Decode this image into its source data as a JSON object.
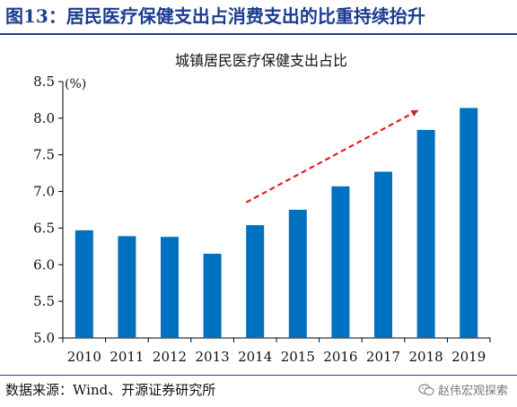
{
  "header": {
    "figure_title": "图13：居民医疗保健支出占消费支出的比重持续抬升"
  },
  "footer": {
    "source": "数据来源：Wind、开源证券研究所",
    "watermark": "赵伟宏观探索"
  },
  "icons": {
    "watermark_icon": "wechat-logo-icon"
  },
  "colors": {
    "bar": "#0070c0",
    "arrow": "#e02020",
    "title": "#1b3d8f"
  },
  "chart_data": {
    "type": "bar",
    "title": "城镇居民医疗保健支出占比",
    "ylabel": "(%)",
    "xlabel": "",
    "categories": [
      "2010",
      "2011",
      "2012",
      "2013",
      "2014",
      "2015",
      "2016",
      "2017",
      "2018",
      "2019"
    ],
    "values": [
      6.47,
      6.39,
      6.38,
      6.15,
      6.54,
      6.75,
      7.07,
      7.27,
      7.84,
      8.14
    ],
    "ylim": [
      5.0,
      8.5
    ],
    "yticks": [
      "5.0",
      "5.5",
      "6.0",
      "6.5",
      "7.0",
      "7.5",
      "8.0",
      "8.5"
    ],
    "grid": false,
    "annotation": {
      "type": "dashed-arrow",
      "from_category": "2014",
      "to_category": "2018",
      "from_value": 6.85,
      "to_value": 8.1
    }
  }
}
